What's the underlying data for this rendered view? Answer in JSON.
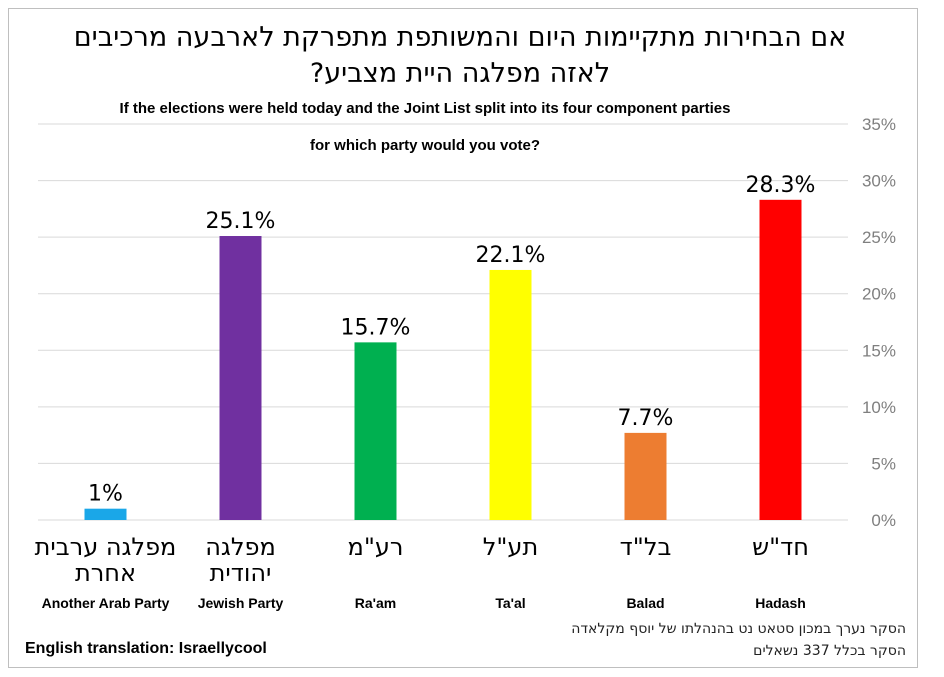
{
  "chart_data": {
    "type": "bar",
    "title_hebrew_line1": "אם הבחירות מתקיימות היום והמשותפת מתפרקת לארבעה מרכיבים",
    "title_hebrew_line2": "לאזה מפלגה היית מצביע?",
    "title_english_line1": "If the elections were held today and the Joint List split into its four component parties",
    "title_english_line2": "for which party would you vote?",
    "categories": [
      {
        "hebrew_line1": "מפלגה ערבית",
        "hebrew_line2": "אחרת",
        "english": "Another Arab Party",
        "value": 1,
        "data_label": "1%",
        "color": "#1AA7E8"
      },
      {
        "hebrew_line1": "מפלגה",
        "hebrew_line2": "יהודית",
        "english": "Jewish Party",
        "value": 25.1,
        "data_label": "25.1%",
        "color": "#7030A0"
      },
      {
        "hebrew_line1": "רע\"מ",
        "hebrew_line2": "",
        "english": "Ra'am",
        "value": 15.7,
        "data_label": "15.7%",
        "color": "#00B050"
      },
      {
        "hebrew_line1": "תע\"ל",
        "hebrew_line2": "",
        "english": "Ta'al",
        "value": 22.1,
        "data_label": "22.1%",
        "color": "#FFFF00"
      },
      {
        "hebrew_line1": "בל\"ד",
        "hebrew_line2": "",
        "english": "Balad",
        "value": 7.7,
        "data_label": "7.7%",
        "color": "#ED7D31"
      },
      {
        "hebrew_line1": "חד\"ש",
        "hebrew_line2": "",
        "english": "Hadash",
        "value": 28.3,
        "data_label": "28.3%",
        "color": "#FF0000"
      }
    ],
    "ylim": [
      0,
      35
    ],
    "yticks": [
      {
        "value": 0,
        "label": "0%"
      },
      {
        "value": 5,
        "label": "5%"
      },
      {
        "value": 10,
        "label": "10%"
      },
      {
        "value": 15,
        "label": "15%"
      },
      {
        "value": 20,
        "label": "20%"
      },
      {
        "value": 25,
        "label": "25%"
      },
      {
        "value": 30,
        "label": "30%"
      },
      {
        "value": 35,
        "label": "35%"
      }
    ],
    "y_axis_side": "right",
    "grid": true,
    "gridline_color": "#d9d9d9"
  },
  "footer": {
    "credit": "English translation: Israellycool",
    "note_line1": "הסקר נערך במכון סטאט נט בהנהלתו של יוסף מקלאדה",
    "note_line2": "הסקר בכלל 337 נשאלים"
  }
}
